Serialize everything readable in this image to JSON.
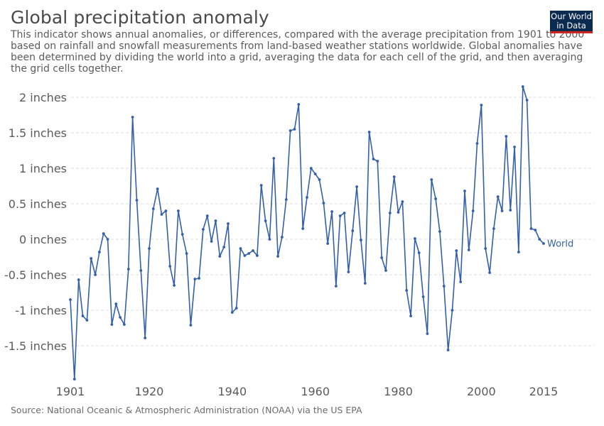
{
  "title": "Global precipitation anomaly",
  "subtitle": "This indicator shows annual anomalies, or differences, compared with the average precipitation from 1901 to 2000 based on rainfall and snowfall measurements from land-based weather stations worldwide. Global anomalies have been determined by dividing the world into a grid, averaging the data for each cell of the grid, and then averaging the grid cells together.",
  "logo": {
    "line1": "Our World",
    "line2": "in Data",
    "bg_color": "#0b2a4f",
    "bar_color": "#ce261e"
  },
  "source": "Source: National Oceanic & Atmospheric Administration (NOAA) via the US EPA",
  "chart_data": {
    "type": "line",
    "title": "Global precipitation anomaly",
    "xlabel": "",
    "ylabel": "",
    "xlim": [
      1901,
      2015
    ],
    "ylim": [
      -2,
      2.2
    ],
    "grid": "horizontal dashed",
    "y_ticks": [
      {
        "value": 2,
        "label": "2 inches"
      },
      {
        "value": 1.5,
        "label": "1.5 inches"
      },
      {
        "value": 1,
        "label": "1 inches"
      },
      {
        "value": 0.5,
        "label": "0.5 inches"
      },
      {
        "value": 0,
        "label": "0 inches"
      },
      {
        "value": -0.5,
        "label": "-0.5 inches"
      },
      {
        "value": -1,
        "label": "-1 inches"
      },
      {
        "value": -1.5,
        "label": "-1.5 inches"
      }
    ],
    "x_ticks": [
      {
        "value": 1901,
        "label": "1901"
      },
      {
        "value": 1920,
        "label": "1920"
      },
      {
        "value": 1940,
        "label": "1940"
      },
      {
        "value": 1960,
        "label": "1960"
      },
      {
        "value": 1980,
        "label": "1980"
      },
      {
        "value": 2000,
        "label": "2000"
      },
      {
        "value": 2015,
        "label": "2015"
      }
    ],
    "series": [
      {
        "name": "World",
        "color": "#3360a9",
        "x": [
          1901,
          1902,
          1903,
          1904,
          1905,
          1906,
          1907,
          1908,
          1909,
          1910,
          1911,
          1912,
          1913,
          1914,
          1915,
          1916,
          1917,
          1918,
          1919,
          1920,
          1921,
          1922,
          1923,
          1924,
          1925,
          1926,
          1927,
          1928,
          1929,
          1930,
          1931,
          1932,
          1933,
          1934,
          1935,
          1936,
          1937,
          1938,
          1939,
          1940,
          1941,
          1942,
          1943,
          1944,
          1945,
          1946,
          1947,
          1948,
          1949,
          1950,
          1951,
          1952,
          1953,
          1954,
          1955,
          1956,
          1957,
          1958,
          1959,
          1960,
          1961,
          1962,
          1963,
          1964,
          1965,
          1966,
          1967,
          1968,
          1969,
          1970,
          1971,
          1972,
          1973,
          1974,
          1975,
          1976,
          1977,
          1978,
          1979,
          1980,
          1981,
          1982,
          1983,
          1984,
          1985,
          1986,
          1987,
          1988,
          1989,
          1990,
          1991,
          1992,
          1993,
          1994,
          1995,
          1996,
          1997,
          1998,
          1999,
          2000,
          2001,
          2002,
          2003,
          2004,
          2005,
          2006,
          2007,
          2008,
          2009,
          2010,
          2011,
          2012,
          2013,
          2014,
          2015
        ],
        "y": [
          -0.85,
          -1.97,
          -0.57,
          -1.08,
          -1.14,
          -0.27,
          -0.5,
          -0.18,
          0.08,
          0.0,
          -1.2,
          -0.91,
          -1.1,
          -1.2,
          -0.42,
          1.72,
          0.55,
          -0.44,
          -1.39,
          -0.13,
          0.43,
          0.71,
          0.35,
          0.4,
          -0.38,
          -0.65,
          0.4,
          0.07,
          -0.2,
          -1.21,
          -0.56,
          -0.55,
          0.14,
          0.33,
          -0.03,
          0.26,
          -0.24,
          -0.11,
          0.22,
          -1.03,
          -0.97,
          -0.13,
          -0.23,
          -0.2,
          -0.16,
          -0.23,
          0.76,
          0.26,
          0.0,
          1.14,
          -0.24,
          0.03,
          0.56,
          1.53,
          1.55,
          1.9,
          0.15,
          0.59,
          1.0,
          0.92,
          0.84,
          0.51,
          -0.06,
          0.39,
          -0.66,
          0.33,
          0.37,
          -0.46,
          0.12,
          0.74,
          -0.01,
          -0.62,
          1.51,
          1.13,
          1.1,
          -0.26,
          -0.44,
          0.37,
          0.88,
          0.38,
          0.53,
          -0.72,
          -1.08,
          0.01,
          -0.19,
          -0.81,
          -1.33,
          0.84,
          0.57,
          0.11,
          -0.66,
          -1.56,
          -1.0,
          -0.16,
          -0.6,
          0.68,
          -0.15,
          0.4,
          1.35,
          1.89,
          -0.13,
          -0.47,
          0.15,
          0.6,
          0.4,
          1.45,
          0.41,
          1.3,
          -0.18,
          2.15,
          1.96,
          0.15,
          0.13,
          0.0,
          -0.06
        ]
      }
    ]
  }
}
